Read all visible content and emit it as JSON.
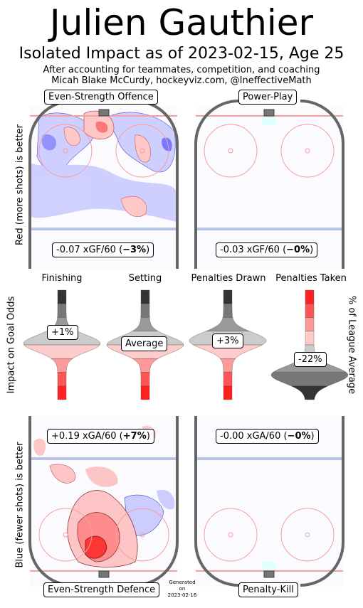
{
  "header": {
    "player": "Julien Gauthier",
    "subtitle": "Isolated Impact as of 2023-02-15, Age 25",
    "note1": "After accounting for teammates, competition, and coaching",
    "note2": "Micah Blake McCurdy, hockeyviz.com, @IneffectiveMath"
  },
  "axis_labels": {
    "offence": "Red (more shots) is better",
    "defence": "Blue (fewer shots) is better",
    "impact": "Impact on Goal Odds",
    "league": "% of League Average"
  },
  "generated": {
    "line1": "Generated",
    "line2": "on",
    "line3": "2023-02-16"
  },
  "colors": {
    "red": "#ff0000",
    "blue": "#0000ff",
    "board": "#666666",
    "blue_line": "#b7c4e6",
    "goal_line": "#f4a0a0"
  },
  "chart_data": [
    {
      "type": "heatmap",
      "panel": "Even-Strength Offence",
      "rate_text": "-0.07 xGF/60 (",
      "pct_text": "−3%",
      "close_text": ")",
      "xGF_per_60": -0.07,
      "pct": -3
    },
    {
      "type": "heatmap",
      "panel": "Power-Play",
      "rate_text": "-0.03 xGF/60 (",
      "pct_text": "−0%",
      "close_text": ")",
      "xGF_per_60": -0.03,
      "pct": 0
    },
    {
      "type": "heatmap",
      "panel": "Even-Strength Defence",
      "rate_text": "+0.19 xGA/60 (",
      "pct_text": "+7%",
      "close_text": ")",
      "xGA_per_60": 0.19,
      "pct": 7
    },
    {
      "type": "heatmap",
      "panel": "Penalty-Kill",
      "rate_text": "-0.00 xGA/60 (",
      "pct_text": "−0%",
      "close_text": ")",
      "xGA_per_60": 0.0,
      "pct": 0
    },
    {
      "type": "area",
      "distributions": [
        {
          "name": "Finishing",
          "value_label": "+1%",
          "value": 1
        },
        {
          "name": "Setting",
          "value_label": "Average",
          "value": 0
        },
        {
          "name": "Penalties Drawn",
          "value_label": "+3%",
          "value": 3
        },
        {
          "name": "Penalties Taken",
          "value_label": "-22%",
          "value": -22
        }
      ]
    }
  ]
}
